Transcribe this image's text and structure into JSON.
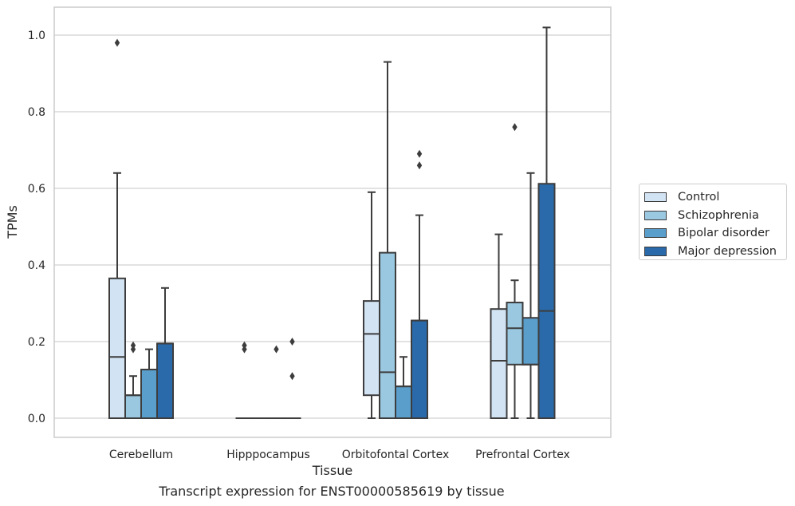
{
  "caption": "Transcript expression for ENST00000585619 by tissue",
  "chart_data": {
    "type": "box",
    "xlabel": "Tissue",
    "ylabel": "TPMs",
    "ylim": [
      -0.05,
      1.075
    ],
    "yticks": [
      "0.0",
      "0.2",
      "0.4",
      "0.6",
      "0.8",
      "1.0"
    ],
    "grid": true,
    "legend_position": "right",
    "categories": [
      "Cerebellum",
      "Hipppocampus",
      "Orbitofontal Cortex",
      "Prefrontal Cortex"
    ],
    "series": [
      {
        "name": "Control",
        "color": "#d2e3f3",
        "boxes": [
          {
            "min": 0,
            "q1": 0,
            "median": 0.16,
            "q3": 0.365,
            "max": 0.64,
            "outliers": [
              0.98
            ]
          },
          {
            "min": 0,
            "q1": 0,
            "median": 0,
            "q3": 0,
            "max": 0,
            "outliers": [
              0.18,
              0.19
            ]
          },
          {
            "min": 0,
            "q1": 0.06,
            "median": 0.22,
            "q3": 0.306,
            "max": 0.59,
            "outliers": []
          },
          {
            "min": 0,
            "q1": 0,
            "median": 0.15,
            "q3": 0.285,
            "max": 0.48,
            "outliers": []
          }
        ]
      },
      {
        "name": "Schizophrenia",
        "color": "#9ac8e0",
        "boxes": [
          {
            "min": 0,
            "q1": 0,
            "median": 0.06,
            "q3": 0.06,
            "max": 0.11,
            "outliers": [
              0.18,
              0.19
            ]
          },
          {
            "min": 0,
            "q1": 0,
            "median": 0,
            "q3": 0,
            "max": 0,
            "outliers": []
          },
          {
            "min": 0,
            "q1": 0,
            "median": 0.12,
            "q3": 0.432,
            "max": 0.93,
            "outliers": []
          },
          {
            "min": 0,
            "q1": 0.14,
            "median": 0.235,
            "q3": 0.302,
            "max": 0.36,
            "outliers": [
              0.76
            ]
          }
        ]
      },
      {
        "name": "Bipolar disorder",
        "color": "#5a9ecc",
        "boxes": [
          {
            "min": 0,
            "q1": 0,
            "median": 0.127,
            "q3": 0.127,
            "max": 0.18,
            "outliers": []
          },
          {
            "min": 0,
            "q1": 0,
            "median": 0,
            "q3": 0,
            "max": 0,
            "outliers": [
              0.18
            ]
          },
          {
            "min": 0,
            "q1": 0,
            "median": 0.083,
            "q3": 0.083,
            "max": 0.16,
            "outliers": []
          },
          {
            "min": 0,
            "q1": 0.14,
            "median": 0.14,
            "q3": 0.262,
            "max": 0.64,
            "outliers": []
          }
        ]
      },
      {
        "name": "Major depression",
        "color": "#2a6aaa",
        "boxes": [
          {
            "min": 0,
            "q1": 0,
            "median": 0.195,
            "q3": 0.195,
            "max": 0.34,
            "outliers": []
          },
          {
            "min": 0,
            "q1": 0,
            "median": 0,
            "q3": 0,
            "max": 0,
            "outliers": [
              0.11,
              0.2
            ]
          },
          {
            "min": 0,
            "q1": 0,
            "median": 0.255,
            "q3": 0.255,
            "max": 0.53,
            "outliers": [
              0.66,
              0.69
            ]
          },
          {
            "min": 0,
            "q1": 0,
            "median": 0.28,
            "q3": 0.612,
            "max": 1.02,
            "outliers": []
          }
        ]
      }
    ]
  }
}
